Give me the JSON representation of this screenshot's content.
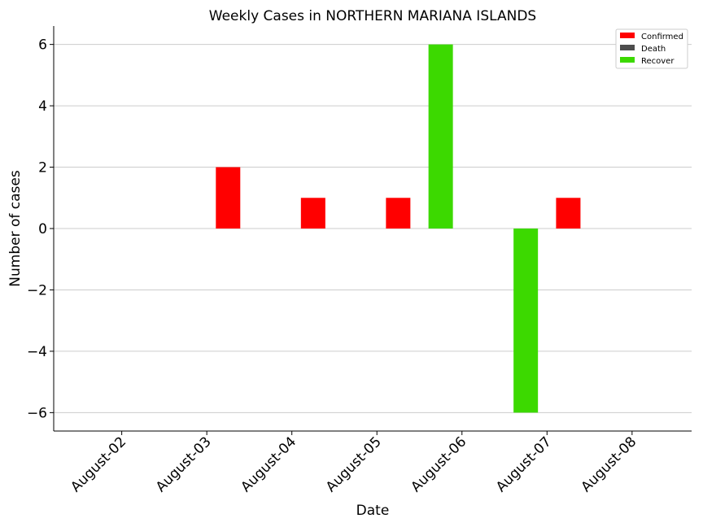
{
  "chart_data": {
    "type": "bar",
    "title": "Weekly Cases in NORTHERN MARIANA ISLANDS",
    "xlabel": "Date",
    "ylabel": "Number of cases",
    "categories": [
      "August-02",
      "August-03",
      "August-04",
      "August-05",
      "August-06",
      "August-07",
      "August-08"
    ],
    "series": [
      {
        "name": "Confirmed",
        "color": "#ff0000",
        "values": [
          0,
          2,
          1,
          1,
          0,
          1,
          0
        ]
      },
      {
        "name": "Death",
        "color": "#4d4d4d",
        "values": [
          0,
          0,
          0,
          0,
          0,
          0,
          0
        ]
      },
      {
        "name": "Recover",
        "color": "#3cd900",
        "values": [
          0,
          0,
          0,
          0,
          6,
          -6,
          0
        ]
      }
    ],
    "ylim": [
      -6.6,
      6.6
    ],
    "yticks": [
      -6,
      -4,
      -2,
      0,
      2,
      4,
      6
    ],
    "ytick_labels": [
      "−6",
      "−4",
      "−2",
      "0",
      "2",
      "4",
      "6"
    ],
    "grid": "horizontal",
    "legend_position": "top-right"
  }
}
